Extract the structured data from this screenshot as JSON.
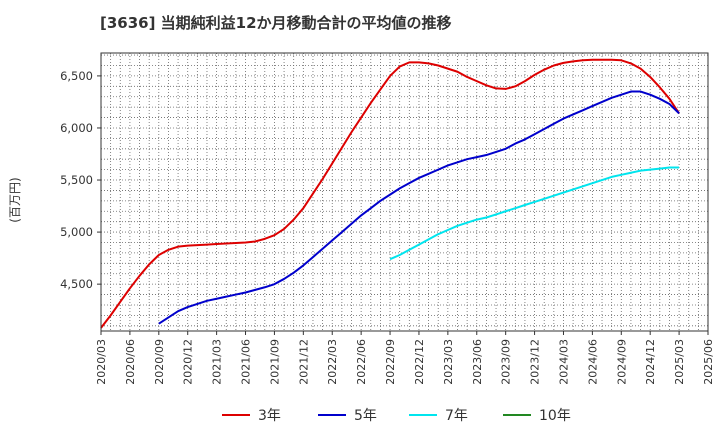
{
  "chart_data": {
    "type": "line",
    "title": "[3636]  当期純利益12か月移動合計の平均値の推移",
    "ylabel": "(百万円)",
    "xlabel": "",
    "ylim": [
      4050,
      6720
    ],
    "y_ticks": [
      4500,
      5000,
      5500,
      6000,
      6500
    ],
    "y_tick_labels": [
      "4,500",
      "5,000",
      "5,500",
      "6,000",
      "6,500"
    ],
    "x_start": "2020/03",
    "x_end": "2025/06",
    "x_tick_labels": [
      "2020/03",
      "2020/06",
      "2020/09",
      "2020/12",
      "2021/03",
      "2021/06",
      "2021/09",
      "2021/12",
      "2022/03",
      "2022/06",
      "2022/09",
      "2022/12",
      "2023/03",
      "2023/06",
      "2023/09",
      "2023/12",
      "2024/03",
      "2024/06",
      "2024/09",
      "2024/12",
      "2025/03",
      "2025/06"
    ],
    "grid": true,
    "legend_position": "bottom",
    "series": [
      {
        "name": "3年",
        "color": "#dd0000",
        "x": [
          "2020/03",
          "2020/04",
          "2020/05",
          "2020/06",
          "2020/07",
          "2020/08",
          "2020/09",
          "2020/10",
          "2020/11",
          "2020/12",
          "2021/01",
          "2021/02",
          "2021/03",
          "2021/04",
          "2021/05",
          "2021/06",
          "2021/07",
          "2021/08",
          "2021/09",
          "2021/10",
          "2021/11",
          "2021/12",
          "2022/01",
          "2022/02",
          "2022/03",
          "2022/04",
          "2022/05",
          "2022/06",
          "2022/07",
          "2022/08",
          "2022/09",
          "2022/10",
          "2022/11",
          "2022/12",
          "2023/01",
          "2023/02",
          "2023/03",
          "2023/04",
          "2023/05",
          "2023/06",
          "2023/07",
          "2023/08",
          "2023/09",
          "2023/10",
          "2023/11",
          "2023/12",
          "2024/01",
          "2024/02",
          "2024/03",
          "2024/04",
          "2024/05",
          "2024/06",
          "2024/07",
          "2024/08",
          "2024/09",
          "2024/10",
          "2024/11",
          "2024/12",
          "2025/01",
          "2025/02",
          "2025/03"
        ],
        "values": [
          4080,
          4200,
          4330,
          4460,
          4580,
          4690,
          4780,
          4830,
          4860,
          4870,
          4875,
          4880,
          4885,
          4890,
          4895,
          4900,
          4910,
          4935,
          4970,
          5030,
          5120,
          5230,
          5370,
          5510,
          5660,
          5810,
          5960,
          6100,
          6240,
          6370,
          6500,
          6590,
          6630,
          6630,
          6620,
          6600,
          6570,
          6540,
          6490,
          6450,
          6410,
          6380,
          6375,
          6400,
          6450,
          6510,
          6560,
          6600,
          6625,
          6640,
          6650,
          6655,
          6655,
          6655,
          6650,
          6620,
          6570,
          6490,
          6390,
          6280,
          6140
        ]
      },
      {
        "name": "5年",
        "color": "#0000cc",
        "x": [
          "2020/09",
          "2020/10",
          "2020/11",
          "2020/12",
          "2021/01",
          "2021/02",
          "2021/03",
          "2021/04",
          "2021/05",
          "2021/06",
          "2021/07",
          "2021/08",
          "2021/09",
          "2021/10",
          "2021/11",
          "2021/12",
          "2022/01",
          "2022/02",
          "2022/03",
          "2022/04",
          "2022/05",
          "2022/06",
          "2022/07",
          "2022/08",
          "2022/09",
          "2022/10",
          "2022/11",
          "2022/12",
          "2023/01",
          "2023/02",
          "2023/03",
          "2023/04",
          "2023/05",
          "2023/06",
          "2023/07",
          "2023/08",
          "2023/09",
          "2023/10",
          "2023/11",
          "2023/12",
          "2024/01",
          "2024/02",
          "2024/03",
          "2024/04",
          "2024/05",
          "2024/06",
          "2024/07",
          "2024/08",
          "2024/09",
          "2024/10",
          "2024/11",
          "2024/12",
          "2025/01",
          "2025/02",
          "2025/03"
        ],
        "values": [
          4120,
          4180,
          4240,
          4280,
          4310,
          4340,
          4360,
          4380,
          4400,
          4420,
          4445,
          4470,
          4500,
          4550,
          4610,
          4680,
          4760,
          4840,
          4920,
          5000,
          5080,
          5160,
          5230,
          5300,
          5360,
          5420,
          5470,
          5520,
          5560,
          5600,
          5640,
          5670,
          5700,
          5720,
          5740,
          5770,
          5800,
          5850,
          5890,
          5940,
          5990,
          6040,
          6090,
          6130,
          6170,
          6210,
          6250,
          6290,
          6320,
          6350,
          6350,
          6320,
          6280,
          6230,
          6140
        ]
      },
      {
        "name": "7年",
        "color": "#00e5ee",
        "x": [
          "2022/09",
          "2022/10",
          "2022/11",
          "2022/12",
          "2023/01",
          "2023/02",
          "2023/03",
          "2023/04",
          "2023/05",
          "2023/06",
          "2023/07",
          "2023/08",
          "2023/09",
          "2023/10",
          "2023/11",
          "2023/12",
          "2024/01",
          "2024/02",
          "2024/03",
          "2024/04",
          "2024/05",
          "2024/06",
          "2024/07",
          "2024/08",
          "2024/09",
          "2024/10",
          "2024/11",
          "2024/12",
          "2025/01",
          "2025/02",
          "2025/03"
        ],
        "values": [
          4740,
          4780,
          4830,
          4880,
          4930,
          4980,
          5020,
          5060,
          5090,
          5120,
          5140,
          5170,
          5200,
          5230,
          5260,
          5290,
          5320,
          5350,
          5380,
          5410,
          5440,
          5470,
          5500,
          5530,
          5550,
          5570,
          5590,
          5600,
          5610,
          5620,
          5620
        ]
      },
      {
        "name": "10年",
        "color": "#228822",
        "x": [],
        "values": []
      }
    ]
  }
}
